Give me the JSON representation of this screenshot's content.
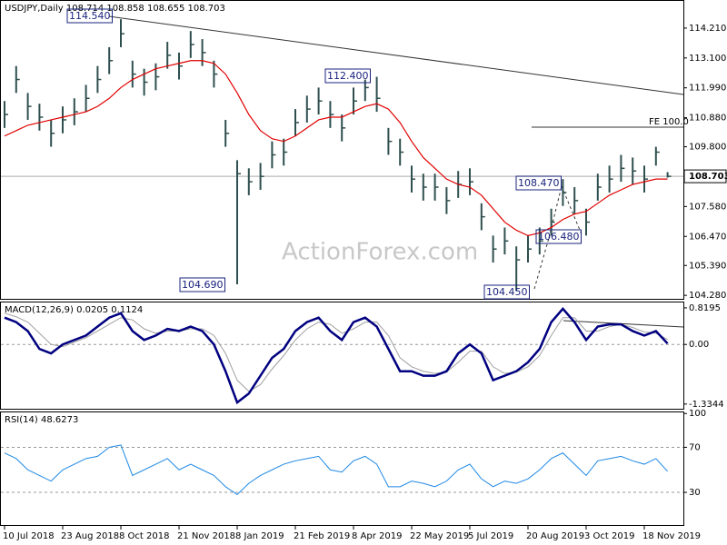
{
  "chart_data": [
    {
      "type": "ohlc",
      "title": "USDJPY,Daily  108.714 108.858 108.655 108.703",
      "watermark": "ActionForex.com",
      "close": [
        111.0,
        112.3,
        111.3,
        110.9,
        110.3,
        110.8,
        111.1,
        111.6,
        112.3,
        113.0,
        114.0,
        112.5,
        112.2,
        112.4,
        113.2,
        112.8,
        113.6,
        113.3,
        112.5,
        110.3,
        108.8,
        108.5,
        108.7,
        109.5,
        109.6,
        110.7,
        111.2,
        111.5,
        111.0,
        110.5,
        111.5,
        112.0,
        111.6,
        110.0,
        109.6,
        108.6,
        108.3,
        108.3,
        107.8,
        108.4,
        108.5,
        107.2,
        106.0,
        106.3,
        105.6,
        106.0,
        106.3,
        107.0,
        108.1,
        107.8,
        107.0,
        108.3,
        108.6,
        109.0,
        108.9,
        108.6,
        109.6,
        108.703
      ],
      "high": [
        111.5,
        112.8,
        111.8,
        111.4,
        110.8,
        111.3,
        111.6,
        112.1,
        112.8,
        113.5,
        114.54,
        113.0,
        112.7,
        112.9,
        113.7,
        113.3,
        114.1,
        113.8,
        113.0,
        110.8,
        109.3,
        109.0,
        109.2,
        110.0,
        110.1,
        111.2,
        111.7,
        112.0,
        111.5,
        111.0,
        112.0,
        112.3,
        112.4,
        110.5,
        110.1,
        109.1,
        108.8,
        108.8,
        108.3,
        108.9,
        109.0,
        107.7,
        106.5,
        106.8,
        106.1,
        106.5,
        106.8,
        107.5,
        108.6,
        108.3,
        107.5,
        108.8,
        109.1,
        109.5,
        109.4,
        109.1,
        109.8,
        108.858
      ],
      "low": [
        110.5,
        111.8,
        110.8,
        110.4,
        109.8,
        110.3,
        110.6,
        111.1,
        111.8,
        112.5,
        113.5,
        112.0,
        111.7,
        111.9,
        112.7,
        112.3,
        113.1,
        112.8,
        112.0,
        109.8,
        104.69,
        108.0,
        108.2,
        109.0,
        109.1,
        110.2,
        110.7,
        111.0,
        110.5,
        110.0,
        111.0,
        111.5,
        111.1,
        109.5,
        109.1,
        108.1,
        107.8,
        107.8,
        107.3,
        107.9,
        108.0,
        106.7,
        105.5,
        105.8,
        104.45,
        105.5,
        105.8,
        106.5,
        107.6,
        107.3,
        106.5,
        107.8,
        108.1,
        108.5,
        108.4,
        108.1,
        109.1,
        108.655
      ],
      "ma": [
        110.2,
        110.4,
        110.6,
        110.7,
        110.8,
        110.9,
        111.0,
        111.1,
        111.3,
        111.6,
        112.0,
        112.3,
        112.5,
        112.7,
        112.8,
        112.9,
        113.0,
        113.0,
        112.9,
        112.5,
        111.8,
        111.0,
        110.4,
        110.1,
        110.0,
        110.2,
        110.5,
        110.8,
        110.9,
        110.9,
        111.1,
        111.3,
        111.4,
        111.2,
        110.7,
        110.0,
        109.4,
        109.0,
        108.6,
        108.4,
        108.3,
        108.0,
        107.5,
        107.0,
        106.7,
        106.5,
        106.6,
        106.8,
        107.1,
        107.3,
        107.4,
        107.7,
        108.0,
        108.2,
        108.4,
        108.5,
        108.6,
        108.6
      ],
      "bar_color": "#2f4f4f",
      "ma_color": "#e00000",
      "ylim": [
        104.15,
        115.22
      ],
      "yticks": [
        {
          "value": 114.21,
          "label": "114.210"
        },
        {
          "value": 113.1,
          "label": "113.100"
        },
        {
          "value": 111.99,
          "label": "111.990"
        },
        {
          "value": 110.88,
          "label": "110.880"
        },
        {
          "value": 109.8,
          "label": "109.800"
        },
        {
          "value": 107.58,
          "label": "107.580"
        },
        {
          "value": 106.47,
          "label": "106.470"
        },
        {
          "value": 105.39,
          "label": "105.390"
        },
        {
          "value": 104.28,
          "label": "104.280"
        }
      ],
      "annotations": [
        "114.540",
        "104.690",
        "112.400",
        "108.470",
        "106.480",
        "104.450",
        "FE 100.0"
      ],
      "xticks": [
        {
          "value": 0,
          "label": "10 Jul 2018"
        },
        {
          "value": 5,
          "label": "23 Aug 2018"
        },
        {
          "value": 10,
          "label": "8 Oct 2018"
        },
        {
          "value": 15,
          "label": "21 Nov 2018"
        },
        {
          "value": 20,
          "label": "8 Jan 2019"
        },
        {
          "value": 25,
          "label": "21 Feb 2019"
        },
        {
          "value": 30,
          "label": "8 Apr 2019"
        },
        {
          "value": 35,
          "label": "22 May 2019"
        },
        {
          "value": 40,
          "label": "5 Jul 2019"
        },
        {
          "value": 45,
          "label": "20 Aug 2019"
        },
        {
          "value": 50,
          "label": "3 Oct 2019"
        },
        {
          "value": 55,
          "label": "18 Nov 2019"
        }
      ]
    },
    {
      "type": "macd",
      "title": "MACD(12,26,9) 0.0205 0.1124",
      "series": [
        {
          "name": "MACD",
          "color": "#000080",
          "values": [
            0.6,
            0.5,
            0.3,
            -0.1,
            -0.2,
            0.0,
            0.1,
            0.2,
            0.4,
            0.6,
            0.7,
            0.3,
            0.1,
            0.2,
            0.35,
            0.3,
            0.4,
            0.3,
            0.0,
            -0.6,
            -1.3,
            -1.1,
            -0.7,
            -0.3,
            -0.1,
            0.3,
            0.5,
            0.6,
            0.3,
            0.1,
            0.5,
            0.6,
            0.4,
            -0.1,
            -0.6,
            -0.6,
            -0.7,
            -0.7,
            -0.6,
            -0.2,
            0.0,
            -0.2,
            -0.8,
            -0.7,
            -0.6,
            -0.4,
            -0.1,
            0.5,
            0.8,
            0.5,
            0.1,
            0.4,
            0.45,
            0.45,
            0.3,
            0.2,
            0.3,
            0.0205
          ]
        },
        {
          "name": "Signal",
          "color": "#a0a0a0",
          "values": [
            0.7,
            0.62,
            0.5,
            0.25,
            0.0,
            -0.05,
            0.05,
            0.15,
            0.3,
            0.45,
            0.6,
            0.55,
            0.35,
            0.25,
            0.3,
            0.3,
            0.35,
            0.35,
            0.2,
            -0.2,
            -0.8,
            -1.05,
            -0.9,
            -0.55,
            -0.25,
            0.1,
            0.35,
            0.5,
            0.45,
            0.25,
            0.35,
            0.5,
            0.5,
            0.2,
            -0.3,
            -0.5,
            -0.6,
            -0.65,
            -0.62,
            -0.4,
            -0.15,
            -0.15,
            -0.5,
            -0.65,
            -0.62,
            -0.5,
            -0.25,
            0.2,
            0.6,
            0.6,
            0.3,
            0.3,
            0.4,
            0.45,
            0.38,
            0.28,
            0.25,
            0.1124
          ]
        }
      ],
      "ylim": [
        -1.44,
        0.94
      ],
      "yticks": [
        {
          "value": 0.8195,
          "label": "0.8195"
        },
        {
          "value": 0,
          "label": "0.00"
        },
        {
          "value": -1.3344,
          "label": "-1.3344"
        }
      ]
    },
    {
      "type": "rsi",
      "title": "RSI(14) 48.6273",
      "color": "#1e88e5",
      "values": [
        65,
        60,
        50,
        45,
        40,
        50,
        55,
        60,
        62,
        70,
        72,
        45,
        50,
        55,
        60,
        50,
        55,
        50,
        45,
        35,
        28,
        38,
        45,
        50,
        55,
        58,
        60,
        62,
        50,
        48,
        58,
        62,
        55,
        35,
        35,
        40,
        38,
        35,
        40,
        50,
        55,
        42,
        35,
        40,
        38,
        42,
        50,
        60,
        65,
        55,
        45,
        58,
        60,
        62,
        58,
        55,
        60,
        48.6273
      ],
      "ylim": [
        1,
        101
      ],
      "yticks": [
        30,
        70,
        100
      ]
    }
  ]
}
